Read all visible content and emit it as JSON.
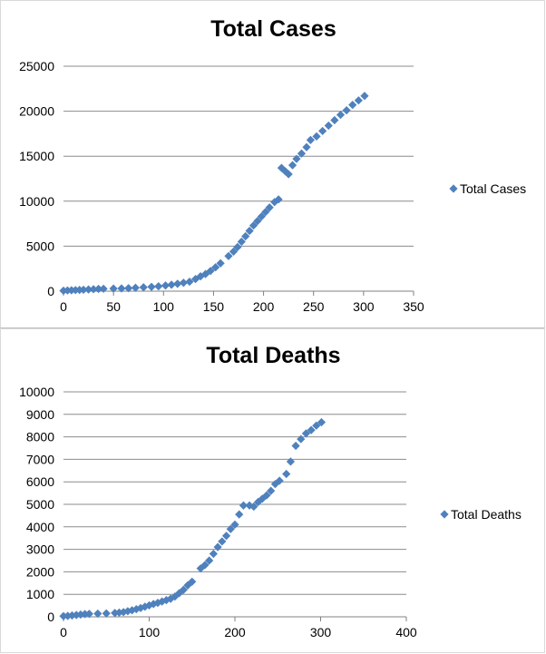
{
  "colors": {
    "marker": "#4f81bd",
    "gridline": "#8c8c8c",
    "axis": "#808080"
  },
  "chart_data": [
    {
      "type": "scatter",
      "title": "Total Cases",
      "marker": "diamond",
      "legend_position": "right",
      "grid": "horizontal",
      "xlim": [
        0,
        350
      ],
      "ylim": [
        0,
        25000
      ],
      "x_ticks": [
        0,
        50,
        100,
        150,
        200,
        250,
        300,
        350
      ],
      "y_ticks": [
        0,
        5000,
        10000,
        15000,
        20000,
        25000
      ],
      "series": [
        {
          "name": "Total Cases",
          "points": [
            [
              0,
              50
            ],
            [
              4,
              80
            ],
            [
              8,
              100
            ],
            [
              12,
              120
            ],
            [
              16,
              140
            ],
            [
              20,
              160
            ],
            [
              25,
              190
            ],
            [
              30,
              220
            ],
            [
              35,
              250
            ],
            [
              40,
              270
            ],
            [
              50,
              290
            ],
            [
              58,
              300
            ],
            [
              65,
              330
            ],
            [
              72,
              380
            ],
            [
              80,
              430
            ],
            [
              88,
              480
            ],
            [
              95,
              540
            ],
            [
              102,
              630
            ],
            [
              108,
              720
            ],
            [
              114,
              820
            ],
            [
              120,
              930
            ],
            [
              126,
              1050
            ],
            [
              132,
              1350
            ],
            [
              137,
              1650
            ],
            [
              142,
              1900
            ],
            [
              147,
              2250
            ],
            [
              152,
              2650
            ],
            [
              157,
              3100
            ],
            [
              165,
              3900
            ],
            [
              170,
              4400
            ],
            [
              174,
              4900
            ],
            [
              178,
              5500
            ],
            [
              182,
              6100
            ],
            [
              186,
              6700
            ],
            [
              190,
              7300
            ],
            [
              194,
              7800
            ],
            [
              198,
              8300
            ],
            [
              202,
              8800
            ],
            [
              206,
              9300
            ],
            [
              211,
              9900
            ],
            [
              215,
              10200
            ],
            [
              218,
              13700
            ],
            [
              222,
              13300
            ],
            [
              225,
              13000
            ],
            [
              229,
              14000
            ],
            [
              233,
              14700
            ],
            [
              238,
              15300
            ],
            [
              243,
              16000
            ],
            [
              247,
              16800
            ],
            [
              253,
              17200
            ],
            [
              259,
              17800
            ],
            [
              265,
              18400
            ],
            [
              271,
              19000
            ],
            [
              277,
              19600
            ],
            [
              283,
              20100
            ],
            [
              289,
              20700
            ],
            [
              295,
              21200
            ],
            [
              301,
              21700
            ]
          ]
        }
      ]
    },
    {
      "type": "scatter",
      "title": "Total Deaths",
      "marker": "diamond",
      "legend_position": "right",
      "grid": "horizontal",
      "xlim": [
        0,
        400
      ],
      "ylim": [
        0,
        10000
      ],
      "x_ticks": [
        0,
        100,
        200,
        300,
        400
      ],
      "y_ticks": [
        0,
        1000,
        2000,
        3000,
        4000,
        5000,
        6000,
        7000,
        8000,
        9000,
        10000
      ],
      "series": [
        {
          "name": "Total Deaths",
          "points": [
            [
              0,
              30
            ],
            [
              5,
              40
            ],
            [
              10,
              60
            ],
            [
              15,
              80
            ],
            [
              20,
              100
            ],
            [
              25,
              120
            ],
            [
              30,
              130
            ],
            [
              40,
              140
            ],
            [
              50,
              150
            ],
            [
              60,
              170
            ],
            [
              65,
              190
            ],
            [
              70,
              210
            ],
            [
              75,
              250
            ],
            [
              80,
              290
            ],
            [
              85,
              340
            ],
            [
              90,
              390
            ],
            [
              95,
              450
            ],
            [
              100,
              510
            ],
            [
              105,
              570
            ],
            [
              110,
              620
            ],
            [
              115,
              680
            ],
            [
              120,
              740
            ],
            [
              125,
              800
            ],
            [
              130,
              900
            ],
            [
              135,
              1050
            ],
            [
              140,
              1200
            ],
            [
              145,
              1400
            ],
            [
              150,
              1560
            ],
            [
              160,
              2150
            ],
            [
              165,
              2300
            ],
            [
              170,
              2500
            ],
            [
              175,
              2800
            ],
            [
              180,
              3100
            ],
            [
              185,
              3350
            ],
            [
              190,
              3600
            ],
            [
              195,
              3900
            ],
            [
              200,
              4100
            ],
            [
              205,
              4550
            ],
            [
              210,
              4950
            ],
            [
              217,
              4950
            ],
            [
              222,
              4900
            ],
            [
              227,
              5100
            ],
            [
              232,
              5250
            ],
            [
              237,
              5400
            ],
            [
              242,
              5600
            ],
            [
              247,
              5900
            ],
            [
              252,
              6050
            ],
            [
              260,
              6350
            ],
            [
              265,
              6900
            ],
            [
              271,
              7600
            ],
            [
              277,
              7900
            ],
            [
              283,
              8150
            ],
            [
              289,
              8300
            ],
            [
              295,
              8500
            ],
            [
              301,
              8650
            ]
          ]
        }
      ]
    }
  ]
}
